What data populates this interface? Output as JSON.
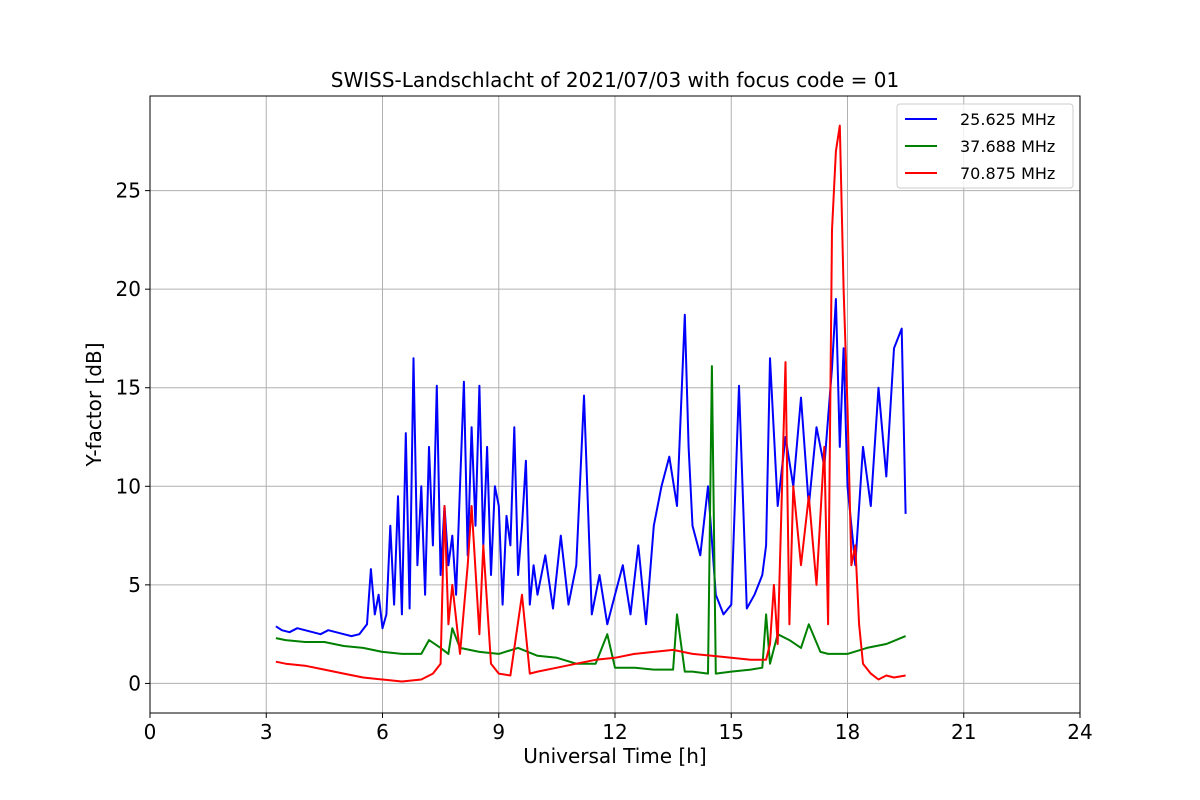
{
  "chart_data": {
    "type": "line",
    "title": "SWISS-Landschlacht of 2021/07/03 with focus code = 01",
    "xlabel": "Universal Time [h]",
    "ylabel": "Y-factor [dB]",
    "xlim": [
      0,
      24
    ],
    "ylim": [
      -1.5,
      29.8
    ],
    "xticks": [
      0,
      3,
      6,
      9,
      12,
      15,
      18,
      21,
      24
    ],
    "yticks": [
      0,
      5,
      10,
      15,
      20,
      25
    ],
    "grid": true,
    "legend_position": "top-right",
    "series": [
      {
        "name": "25.625 MHz",
        "color": "#0000ff",
        "x": [
          3.25,
          3.4,
          3.6,
          3.8,
          4.0,
          4.2,
          4.4,
          4.6,
          4.8,
          5.0,
          5.2,
          5.4,
          5.6,
          5.7,
          5.8,
          5.9,
          6.0,
          6.1,
          6.2,
          6.3,
          6.4,
          6.5,
          6.6,
          6.7,
          6.8,
          6.9,
          7.0,
          7.1,
          7.2,
          7.3,
          7.4,
          7.5,
          7.6,
          7.7,
          7.8,
          7.9,
          8.0,
          8.1,
          8.2,
          8.3,
          8.4,
          8.5,
          8.6,
          8.7,
          8.8,
          8.9,
          9.0,
          9.1,
          9.2,
          9.3,
          9.4,
          9.5,
          9.6,
          9.7,
          9.8,
          9.9,
          10.0,
          10.2,
          10.4,
          10.6,
          10.8,
          11.0,
          11.2,
          11.4,
          11.6,
          11.8,
          12.0,
          12.2,
          12.4,
          12.6,
          12.8,
          13.0,
          13.2,
          13.4,
          13.6,
          13.8,
          13.9,
          14.0,
          14.2,
          14.4,
          14.6,
          14.8,
          15.0,
          15.2,
          15.4,
          15.6,
          15.8,
          15.9,
          16.0,
          16.2,
          16.4,
          16.6,
          16.8,
          17.0,
          17.2,
          17.4,
          17.6,
          17.7,
          17.8,
          17.9,
          18.0,
          18.2,
          18.4,
          18.6,
          18.8,
          19.0,
          19.2,
          19.4,
          19.5
        ],
        "y": [
          2.9,
          2.7,
          2.6,
          2.8,
          2.7,
          2.6,
          2.5,
          2.7,
          2.6,
          2.5,
          2.4,
          2.5,
          3.0,
          5.8,
          3.5,
          4.5,
          2.8,
          3.5,
          8.0,
          4.0,
          9.5,
          3.5,
          12.7,
          3.8,
          16.5,
          6.0,
          10.0,
          4.5,
          12.0,
          7.0,
          15.1,
          5.5,
          9.0,
          6.0,
          7.5,
          4.5,
          10.0,
          15.3,
          6.5,
          13.0,
          8.0,
          15.1,
          7.0,
          12.0,
          5.5,
          10.0,
          9.0,
          4.0,
          8.5,
          7.0,
          13.0,
          5.5,
          8.0,
          11.3,
          4.0,
          6.0,
          4.5,
          6.5,
          3.8,
          7.5,
          4.0,
          6.0,
          14.6,
          3.5,
          5.5,
          3.0,
          4.5,
          6.0,
          3.5,
          7.0,
          3.0,
          8.0,
          10.0,
          11.5,
          9.0,
          18.7,
          12.0,
          8.0,
          6.5,
          10.0,
          4.5,
          3.5,
          4.0,
          15.1,
          3.8,
          4.5,
          5.5,
          7.0,
          16.5,
          9.0,
          12.5,
          10.0,
          14.5,
          9.0,
          13.0,
          11.0,
          16.0,
          19.5,
          12.0,
          17.0,
          10.0,
          6.0,
          12.0,
          9.0,
          15.0,
          10.5,
          17.0,
          18.0,
          8.6
        ]
      },
      {
        "name": "37.688 MHz",
        "color": "#008000",
        "x": [
          3.25,
          3.5,
          4.0,
          4.5,
          5.0,
          5.5,
          6.0,
          6.5,
          7.0,
          7.2,
          7.5,
          7.7,
          7.8,
          8.0,
          8.5,
          9.0,
          9.5,
          10.0,
          10.5,
          11.0,
          11.5,
          11.8,
          12.0,
          12.5,
          13.0,
          13.5,
          13.6,
          13.8,
          14.0,
          14.4,
          14.5,
          14.6,
          15.0,
          15.5,
          15.8,
          15.9,
          16.0,
          16.2,
          16.5,
          16.8,
          17.0,
          17.3,
          17.5,
          18.0,
          18.5,
          19.0,
          19.5
        ],
        "y": [
          2.3,
          2.2,
          2.1,
          2.1,
          1.9,
          1.8,
          1.6,
          1.5,
          1.5,
          2.2,
          1.8,
          1.5,
          2.8,
          1.8,
          1.6,
          1.5,
          1.8,
          1.4,
          1.3,
          1.0,
          1.0,
          2.5,
          0.8,
          0.8,
          0.7,
          0.7,
          3.5,
          0.6,
          0.6,
          0.5,
          16.1,
          0.5,
          0.6,
          0.7,
          0.8,
          3.5,
          1.0,
          2.5,
          2.2,
          1.8,
          3.0,
          1.6,
          1.5,
          1.5,
          1.8,
          2.0,
          2.4
        ]
      },
      {
        "name": "70.875 MHz",
        "color": "#ff0000",
        "x": [
          3.25,
          3.5,
          4.0,
          4.5,
          5.0,
          5.5,
          6.0,
          6.5,
          7.0,
          7.3,
          7.5,
          7.6,
          7.7,
          7.8,
          8.0,
          8.2,
          8.3,
          8.5,
          8.6,
          8.8,
          9.0,
          9.3,
          9.6,
          9.8,
          10.0,
          10.5,
          11.0,
          11.5,
          12.0,
          12.5,
          13.0,
          13.5,
          14.0,
          14.5,
          15.0,
          15.5,
          15.9,
          16.0,
          16.1,
          16.2,
          16.4,
          16.5,
          16.6,
          16.8,
          17.0,
          17.2,
          17.4,
          17.5,
          17.6,
          17.7,
          17.8,
          17.9,
          18.0,
          18.1,
          18.2,
          18.3,
          18.4,
          18.6,
          18.8,
          19.0,
          19.2,
          19.5
        ],
        "y": [
          1.1,
          1.0,
          0.9,
          0.7,
          0.5,
          0.3,
          0.2,
          0.1,
          0.2,
          0.5,
          1.0,
          9.0,
          3.0,
          5.0,
          1.5,
          6.0,
          9.0,
          2.5,
          7.0,
          1.0,
          0.5,
          0.4,
          4.5,
          0.5,
          0.6,
          0.8,
          1.0,
          1.2,
          1.3,
          1.5,
          1.6,
          1.7,
          1.5,
          1.4,
          1.3,
          1.2,
          1.2,
          2.0,
          5.0,
          2.0,
          16.3,
          3.0,
          10.0,
          6.0,
          9.5,
          5.0,
          12.0,
          3.0,
          23.0,
          27.0,
          28.3,
          20.0,
          14.0,
          6.0,
          7.0,
          3.0,
          1.0,
          0.5,
          0.2,
          0.4,
          0.3,
          0.4
        ]
      }
    ]
  }
}
